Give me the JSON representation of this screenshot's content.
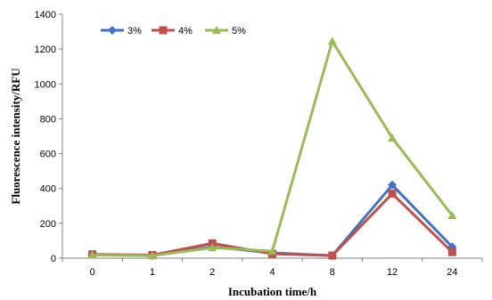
{
  "chart_data": {
    "type": "line",
    "title": "",
    "xlabel": "Incubation time/h",
    "ylabel": "Fluorescence intensity/RFU",
    "categories": [
      "0",
      "1",
      "2",
      "4",
      "8",
      "12",
      "24"
    ],
    "ylim": [
      0,
      1400
    ],
    "yticks": [
      0,
      200,
      400,
      600,
      800,
      1000,
      1200,
      1400
    ],
    "grid": false,
    "legend_position": "top-left",
    "series": [
      {
        "name": "3%",
        "color": "#4472C4",
        "marker": "diamond",
        "values": [
          20,
          15,
          65,
          30,
          15,
          420,
          65
        ]
      },
      {
        "name": "4%",
        "color": "#C0504D",
        "marker": "square",
        "values": [
          22,
          18,
          85,
          25,
          15,
          370,
          35
        ]
      },
      {
        "name": "5%",
        "color": "#9BBB59",
        "marker": "triangle",
        "values": [
          18,
          14,
          60,
          40,
          1245,
          690,
          245
        ]
      }
    ]
  }
}
